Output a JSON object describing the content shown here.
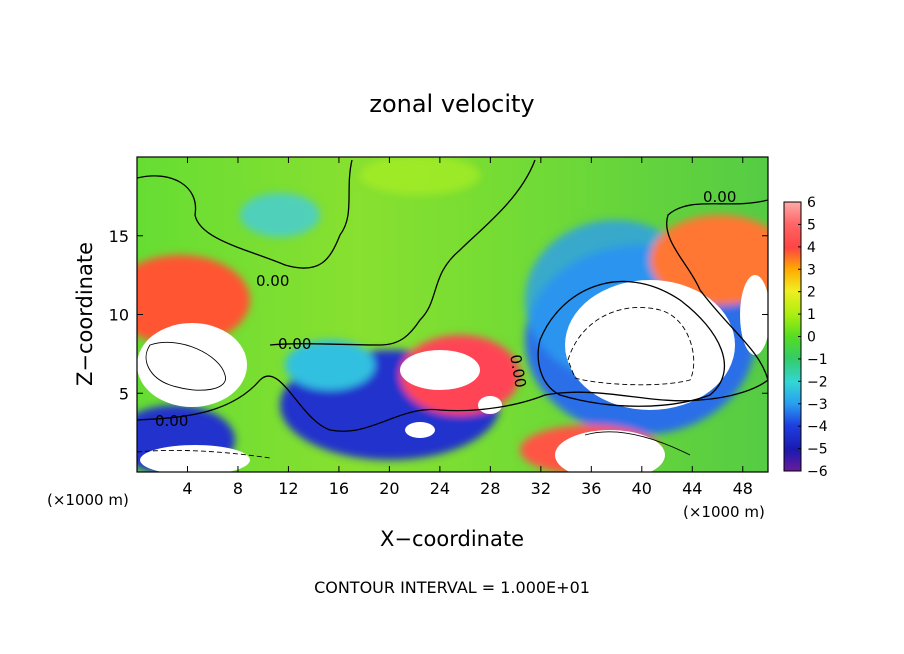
{
  "chart_data": {
    "type": "heatmap",
    "title": "zonal velocity",
    "xlabel": "X−coordinate",
    "ylabel": "Z−coordinate",
    "x_unit_left": "(×1000 m)",
    "x_unit_right": "(×1000 m)",
    "footer": "CONTOUR INTERVAL = 1.000E+01",
    "xlim": [
      0,
      50
    ],
    "ylim": [
      0,
      20
    ],
    "x_ticks": [
      4,
      8,
      12,
      16,
      20,
      24,
      28,
      32,
      36,
      40,
      44,
      48
    ],
    "x_tick_labels": [
      "4",
      "8",
      "12",
      "16",
      "20",
      "24",
      "28",
      "32",
      "36",
      "40",
      "44",
      "48"
    ],
    "y_ticks": [
      5,
      10,
      15
    ],
    "y_tick_labels": [
      "5",
      "10",
      "15"
    ],
    "contour_labels": [
      "0.00",
      "0.00",
      "0.00",
      "0.00",
      "0.00"
    ],
    "colorbar": {
      "min": -6,
      "max": 6,
      "ticks": [
        6,
        5,
        4,
        3,
        2,
        1,
        0,
        -1,
        -2,
        -3,
        -4,
        -5,
        -6
      ],
      "tick_labels": [
        "6",
        "5",
        "4",
        "3",
        "2",
        "1",
        "0",
        "−1",
        "−2",
        "−3",
        "−4",
        "−5",
        "−6"
      ],
      "colors": [
        "#6a1b9a",
        "#1a1ab0",
        "#1f3fe0",
        "#2a9ef0",
        "#33d6d6",
        "#33cc66",
        "#55dd22",
        "#aaee11",
        "#f0ee22",
        "#ffaa00",
        "#ff4444",
        "#ff6666",
        "#ffaaaa"
      ]
    }
  }
}
